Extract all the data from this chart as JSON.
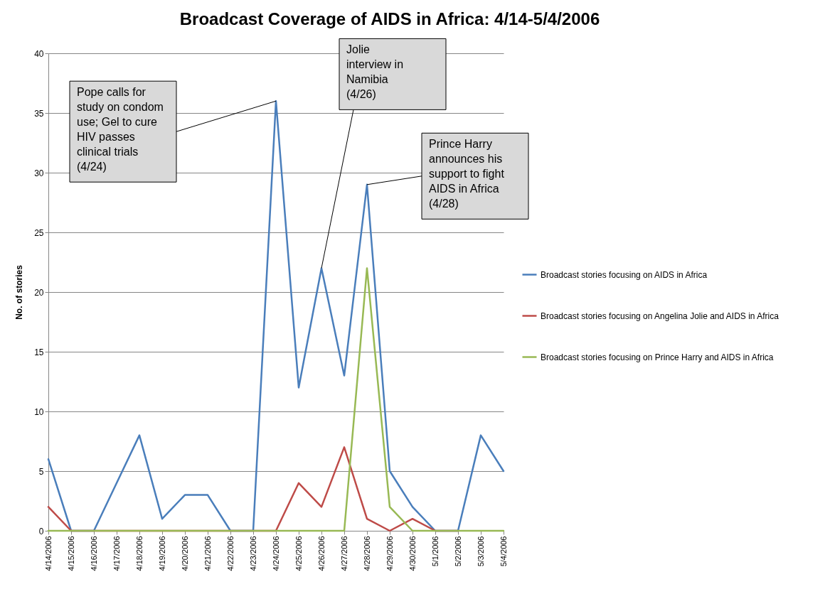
{
  "chart_data": {
    "type": "line",
    "title": "Broadcast Coverage of AIDS in Africa: 4/14-5/4/2006",
    "ylabel": "No. of stories",
    "categories": [
      "4/14/2006",
      "4/15/2006",
      "4/16/2006",
      "4/17/2006",
      "4/18/2006",
      "4/19/2006",
      "4/20/2006",
      "4/21/2006",
      "4/22/2006",
      "4/23/2006",
      "4/24/2006",
      "4/25/2006",
      "4/26/2006",
      "4/27/2006",
      "4/28/2006",
      "4/29/2006",
      "4/30/2006",
      "5/1/2006",
      "5/2/2006",
      "5/3/2006",
      "5/4/2006"
    ],
    "series": [
      {
        "name": "Broadcast stories focusing on AIDS in Africa",
        "color": "#4a7ebb",
        "values": [
          6,
          0,
          0,
          4,
          8,
          1,
          3,
          3,
          0,
          0,
          36,
          12,
          22,
          13,
          29,
          5,
          2,
          0,
          0,
          8,
          5
        ]
      },
      {
        "name": "Broadcast stories focusing on Angelina Jolie and AIDS in Africa",
        "color": "#be4b48",
        "values": [
          2,
          0,
          0,
          0,
          0,
          0,
          0,
          0,
          0,
          0,
          0,
          4,
          2,
          7,
          1,
          0,
          1,
          0,
          0,
          null,
          null
        ]
      },
      {
        "name": "Broadcast stories focusing on Prince Harry and AIDS in Africa",
        "color": "#98b954",
        "values": [
          0,
          0,
          0,
          0,
          0,
          0,
          0,
          0,
          0,
          0,
          0,
          0,
          0,
          0,
          22,
          2,
          0,
          0,
          0,
          0,
          0
        ]
      }
    ],
    "ylim": [
      0,
      40
    ],
    "yticks": [
      0,
      5,
      10,
      15,
      20,
      25,
      30,
      35,
      40
    ],
    "grid": "y",
    "legend": "right",
    "annotations": [
      {
        "text": "Pope calls for study on condom use; Gel to cure HIV passes clinical trials (4/24)",
        "x": "4/24/2006",
        "y": 36
      },
      {
        "text": "Jolie interview in Namibia (4/26)",
        "x": "4/26/2006",
        "y": 22
      },
      {
        "text": "Prince Harry announces his support to fight AIDS in Africa (4/28)",
        "x": "4/28/2006",
        "y": 29
      }
    ]
  }
}
